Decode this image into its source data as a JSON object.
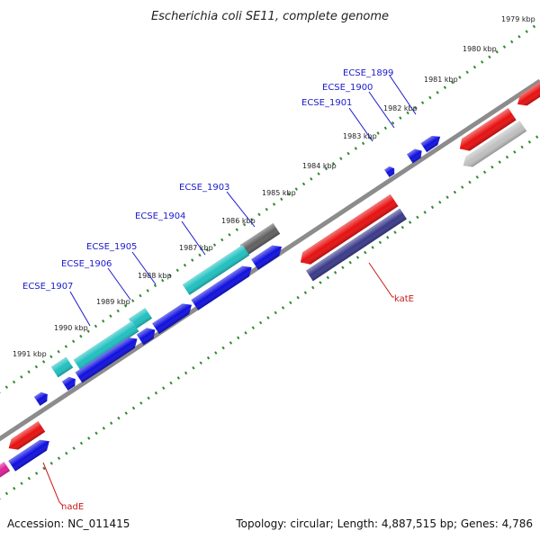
{
  "title": "Escherichia coli SE11, complete genome",
  "footer": {
    "accession": "Accession: NC_011415",
    "topology": "Topology: circular; Length: 4,887,515 bp; Genes: 4,786"
  },
  "colors": {
    "backbone": "#8c8c8c",
    "tick_dots": "#2e8b2e",
    "callout_blue": "#1a1acc",
    "callout_red": "#cc1a1a",
    "blue_gene": "#1010e0",
    "cyan_gene": "#20c0c0",
    "red_gene": "#e81010",
    "gray_gene": "#606060",
    "light_gray_gene": "#c0c0c0",
    "navy_gene": "#3a3a8a",
    "magenta_gene": "#e0209a"
  },
  "kbp_labels": [
    "1979 kbp",
    "1980 kbp",
    "1981 kbp",
    "1982 kbp",
    "1983 kbp",
    "1984 kbp",
    "1985 kbp",
    "1986 kbp",
    "1987 kbp",
    "1988 kbp",
    "1989 kbp",
    "1990 kbp",
    "1991 kbp"
  ],
  "upper_callouts": [
    "ECSE_1899",
    "ECSE_1900",
    "ECSE_1901",
    "ECSE_1903",
    "ECSE_1904",
    "ECSE_1905",
    "ECSE_1906",
    "ECSE_1907"
  ],
  "lower_callouts": [
    "katE",
    "nadE"
  ]
}
